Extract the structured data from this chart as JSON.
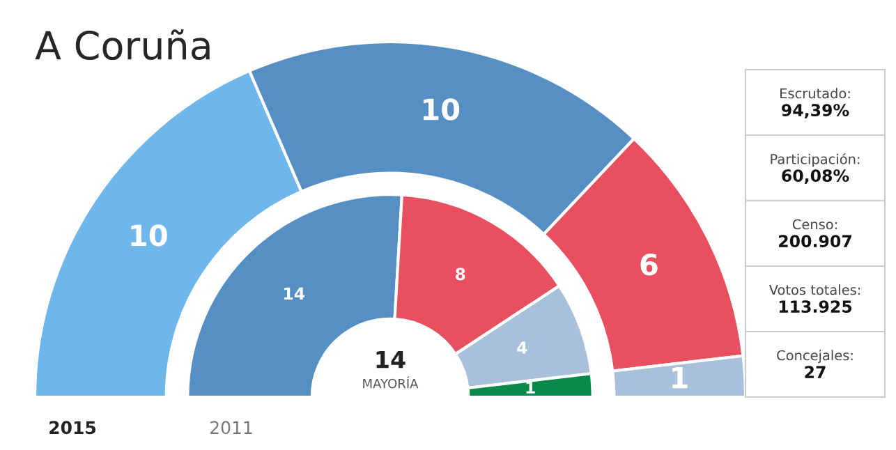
{
  "chart_data": [
    {
      "type": "donut",
      "title": "A Coruña",
      "categories": [
        null,
        null,
        null,
        null,
        null
      ],
      "colors": [
        "#6fb6ea",
        "#558fc3",
        "#e84f5f",
        "#a8c0da",
        "#0a8a4a"
      ],
      "data_labels": true,
      "annotations": [
        "14",
        "MAYORÍA"
      ],
      "series": [
        {
          "name": "2015",
          "values": [
            10,
            10,
            6,
            1,
            null
          ]
        },
        {
          "name": "2011",
          "values": [
            null,
            14,
            8,
            4,
            1
          ]
        }
      ]
    },
    {
      "type": "other",
      "annotations": [
        "Escrutado:",
        "94,39%",
        "Participación:",
        "60,08%",
        "Censo:",
        "200.907",
        "Votos totales:",
        "113.925",
        "Concejales:",
        "27"
      ]
    }
  ]
}
